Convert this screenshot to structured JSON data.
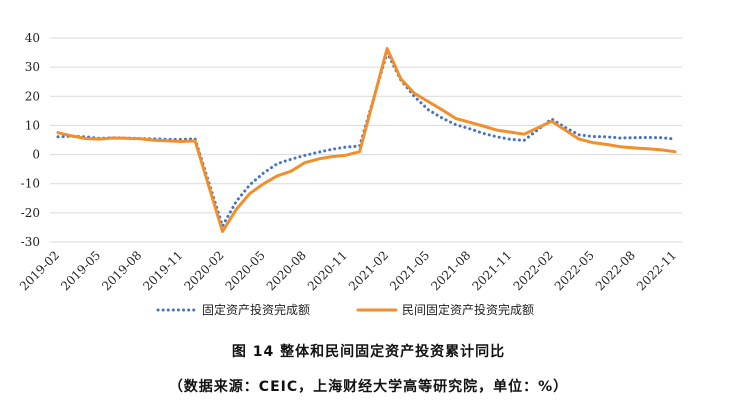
{
  "chart_data": {
    "type": "line",
    "x": [
      "2019-02",
      "2019-03",
      "2019-04",
      "2019-05",
      "2019-06",
      "2019-07",
      "2019-08",
      "2019-09",
      "2019-10",
      "2019-11",
      "2019-12",
      "2020-02",
      "2020-03",
      "2020-04",
      "2020-05",
      "2020-06",
      "2020-07",
      "2020-08",
      "2020-09",
      "2020-10",
      "2020-11",
      "2020-12",
      "2021-02",
      "2021-03",
      "2021-04",
      "2021-05",
      "2021-06",
      "2021-07",
      "2021-08",
      "2021-09",
      "2021-10",
      "2021-11",
      "2021-12",
      "2022-02",
      "2022-03",
      "2022-04",
      "2022-05",
      "2022-06",
      "2022-07",
      "2022-08",
      "2022-09",
      "2022-10",
      "2022-11"
    ],
    "x_tick_labels": [
      "2019-02",
      "2019-05",
      "2019-08",
      "2019-11",
      "2020-02",
      "2020-05",
      "2020-08",
      "2020-11",
      "2021-02",
      "2021-05",
      "2021-08",
      "2021-11",
      "2022-02",
      "2022-05",
      "2022-08",
      "2022-11"
    ],
    "ylim": [
      -30,
      40
    ],
    "y_ticks": [
      -30,
      -20,
      -10,
      0,
      10,
      20,
      30,
      40
    ],
    "grid": true,
    "legend_position": "bottom",
    "series": [
      {
        "name": "固定资产投资完成额",
        "style": "dotted",
        "color": "#4472C4",
        "values": [
          6.1,
          6.3,
          6.1,
          5.6,
          5.8,
          5.7,
          5.5,
          5.4,
          5.2,
          5.2,
          5.4,
          -24.5,
          -16.1,
          -10.3,
          -6.3,
          -3.1,
          -1.6,
          -0.3,
          0.8,
          1.8,
          2.6,
          2.9,
          35.0,
          25.6,
          19.9,
          15.4,
          12.6,
          10.3,
          8.9,
          7.3,
          6.1,
          5.2,
          4.9,
          12.2,
          9.3,
          6.8,
          6.2,
          6.1,
          5.7,
          5.8,
          5.9,
          5.8,
          5.3
        ]
      },
      {
        "name": "民间固定资产投资完成额",
        "style": "solid",
        "color": "#F28E2B",
        "values": [
          7.5,
          6.4,
          5.5,
          5.3,
          5.7,
          5.6,
          5.4,
          4.9,
          4.7,
          4.5,
          4.7,
          -26.4,
          -18.8,
          -13.3,
          -10.0,
          -7.3,
          -5.7,
          -2.8,
          -1.5,
          -0.7,
          -0.2,
          1.0,
          36.4,
          26.0,
          21.0,
          18.2,
          15.4,
          12.4,
          11.1,
          9.8,
          8.4,
          7.7,
          7.0,
          11.4,
          8.4,
          5.3,
          4.1,
          3.5,
          2.7,
          2.3,
          2.0,
          1.6,
          1.0
        ]
      }
    ]
  },
  "caption": {
    "title": "图 14  整体和民间固定资产投资累计同比",
    "source": "（数据来源：CEIC，上海财经大学高等研究院，单位：%）"
  }
}
